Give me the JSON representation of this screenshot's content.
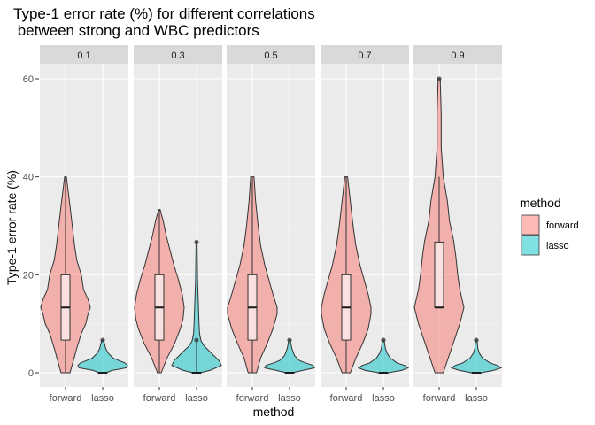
{
  "chart_data": {
    "type": "violin",
    "title_line1": "Type-1 error rate (%) for different correlations",
    "title_line2": " between strong and WBC predictors",
    "xlabel": "method",
    "ylabel": "Type-1 error rate (%)",
    "ylim": [
      -3,
      63
    ],
    "yticks": [
      0,
      20,
      40,
      60
    ],
    "categories": [
      "forward",
      "lasso"
    ],
    "facets": [
      "0.1",
      "0.3",
      "0.5",
      "0.7",
      "0.9"
    ],
    "legend": {
      "title": "method",
      "placement": "right",
      "items": [
        {
          "label": "forward",
          "color": "#F8766D"
        },
        {
          "label": "lasso",
          "color": "#00BFC4"
        }
      ]
    },
    "grid": true,
    "panels": [
      {
        "facet": "0.1",
        "forward": {
          "min": 0,
          "q1": 6.67,
          "median": 13.33,
          "q3": 20,
          "max": 40,
          "outliers": [],
          "density": [
            [
              0,
              0.1
            ],
            [
              2,
              0.16
            ],
            [
              5,
              0.25
            ],
            [
              8,
              0.35
            ],
            [
              10,
              0.45
            ],
            [
              12,
              0.5
            ],
            [
              13.33,
              0.55
            ],
            [
              15,
              0.5
            ],
            [
              17,
              0.4
            ],
            [
              20,
              0.35
            ],
            [
              23,
              0.25
            ],
            [
              26,
              0.2
            ],
            [
              30,
              0.15
            ],
            [
              34,
              0.1
            ],
            [
              37,
              0.06
            ],
            [
              40,
              0.02
            ]
          ]
        },
        "lasso": {
          "min": 0,
          "q1": 0,
          "median": 0,
          "q3": 0,
          "max": 0,
          "outliers": [
            6.67
          ],
          "density": [
            [
              0,
              0.12
            ],
            [
              0.5,
              0.4
            ],
            [
              1,
              0.95
            ],
            [
              1.5,
              1.0
            ],
            [
              2,
              0.9
            ],
            [
              2.5,
              0.65
            ],
            [
              3,
              0.42
            ],
            [
              4,
              0.22
            ],
            [
              5,
              0.12
            ],
            [
              6,
              0.07
            ],
            [
              6.67,
              0.03
            ]
          ]
        }
      },
      {
        "facet": "0.3",
        "forward": {
          "min": 0,
          "q1": 6.67,
          "median": 13.33,
          "q3": 20,
          "max": 33.33,
          "outliers": [],
          "density": [
            [
              0,
              0.05
            ],
            [
              3,
              0.2
            ],
            [
              6,
              0.4
            ],
            [
              9,
              0.55
            ],
            [
              11,
              0.62
            ],
            [
              13.33,
              0.65
            ],
            [
              16,
              0.6
            ],
            [
              19,
              0.5
            ],
            [
              22,
              0.38
            ],
            [
              25,
              0.28
            ],
            [
              28,
              0.18
            ],
            [
              31,
              0.1
            ],
            [
              33.33,
              0.02
            ]
          ]
        },
        "lasso": {
          "min": 0,
          "q1": 0,
          "median": 0,
          "q3": 0,
          "max": 6.67,
          "outliers": [
            6.67,
            26.67
          ],
          "density": [
            [
              0,
              0.15
            ],
            [
              0.5,
              0.55
            ],
            [
              1.5,
              1.0
            ],
            [
              2.5,
              0.9
            ],
            [
              3.5,
              0.7
            ],
            [
              4.5,
              0.5
            ],
            [
              5.5,
              0.3
            ],
            [
              6.5,
              0.18
            ],
            [
              8,
              0.12
            ],
            [
              10,
              0.1
            ],
            [
              13,
              0.08
            ],
            [
              16,
              0.06
            ],
            [
              19,
              0.04
            ],
            [
              23,
              0.03
            ],
            [
              26.67,
              0.02
            ]
          ]
        }
      },
      {
        "facet": "0.5",
        "forward": {
          "min": 0,
          "q1": 6.67,
          "median": 13.33,
          "q3": 20,
          "max": 40,
          "outliers": [],
          "density": [
            [
              0,
              0.05
            ],
            [
              3,
              0.1
            ],
            [
              6,
              0.18
            ],
            [
              9,
              0.25
            ],
            [
              12,
              0.3
            ],
            [
              13.33,
              0.3
            ],
            [
              16,
              0.25
            ],
            [
              19,
              0.2
            ],
            [
              22,
              0.15
            ],
            [
              26,
              0.1
            ],
            [
              30,
              0.07
            ],
            [
              35,
              0.04
            ],
            [
              40,
              0.02
            ]
          ]
        },
        "lasso": {
          "min": 0,
          "q1": 0,
          "median": 0,
          "q3": 0,
          "max": 0,
          "outliers": [
            6.67
          ],
          "density": [
            [
              0,
              0.12
            ],
            [
              0.5,
              0.55
            ],
            [
              1,
              1.0
            ],
            [
              1.5,
              0.95
            ],
            [
              2,
              0.65
            ],
            [
              2.5,
              0.4
            ],
            [
              3.5,
              0.2
            ],
            [
              5,
              0.09
            ],
            [
              6.67,
              0.03
            ]
          ]
        }
      },
      {
        "facet": "0.7",
        "forward": {
          "min": 0,
          "q1": 6.67,
          "median": 13.33,
          "q3": 20,
          "max": 40,
          "outliers": [],
          "density": [
            [
              0,
              0.03
            ],
            [
              3,
              0.07
            ],
            [
              6,
              0.12
            ],
            [
              9,
              0.16
            ],
            [
              12,
              0.18
            ],
            [
              13.33,
              0.18
            ],
            [
              16,
              0.16
            ],
            [
              19,
              0.13
            ],
            [
              22,
              0.1
            ],
            [
              26,
              0.07
            ],
            [
              30,
              0.05
            ],
            [
              35,
              0.03
            ],
            [
              40,
              0.01
            ]
          ]
        },
        "lasso": {
          "min": 0,
          "q1": 0,
          "median": 0,
          "q3": 0,
          "max": 0,
          "outliers": [
            6.67
          ],
          "density": [
            [
              0,
              0.2
            ],
            [
              0.5,
              0.75
            ],
            [
              1,
              1.0
            ],
            [
              1.5,
              0.85
            ],
            [
              2,
              0.55
            ],
            [
              3,
              0.28
            ],
            [
              4,
              0.15
            ],
            [
              5,
              0.08
            ],
            [
              6.67,
              0.03
            ]
          ]
        }
      },
      {
        "facet": "0.9",
        "forward": {
          "min": 13.33,
          "q1": 13.33,
          "median": 13.33,
          "q3": 26.67,
          "max": 40,
          "outliers": [
            60
          ],
          "density": [
            [
              0,
              0.02
            ],
            [
              5,
              0.06
            ],
            [
              10,
              0.1
            ],
            [
              13.33,
              0.12
            ],
            [
              17,
              0.1
            ],
            [
              20,
              0.09
            ],
            [
              24,
              0.08
            ],
            [
              27,
              0.07
            ],
            [
              31,
              0.05
            ],
            [
              35,
              0.04
            ],
            [
              40,
              0.02
            ],
            [
              46,
              0.01
            ],
            [
              53,
              0.01
            ],
            [
              60,
              0.005
            ]
          ]
        },
        "lasso": {
          "min": 0,
          "q1": 0,
          "median": 0,
          "q3": 0,
          "max": 0,
          "outliers": [
            6.67
          ],
          "density": [
            [
              0,
              0.2
            ],
            [
              0.5,
              0.7
            ],
            [
              1,
              1.0
            ],
            [
              1.5,
              0.85
            ],
            [
              2,
              0.55
            ],
            [
              3,
              0.25
            ],
            [
              4,
              0.12
            ],
            [
              5,
              0.06
            ],
            [
              6.67,
              0.03
            ]
          ]
        }
      }
    ]
  }
}
